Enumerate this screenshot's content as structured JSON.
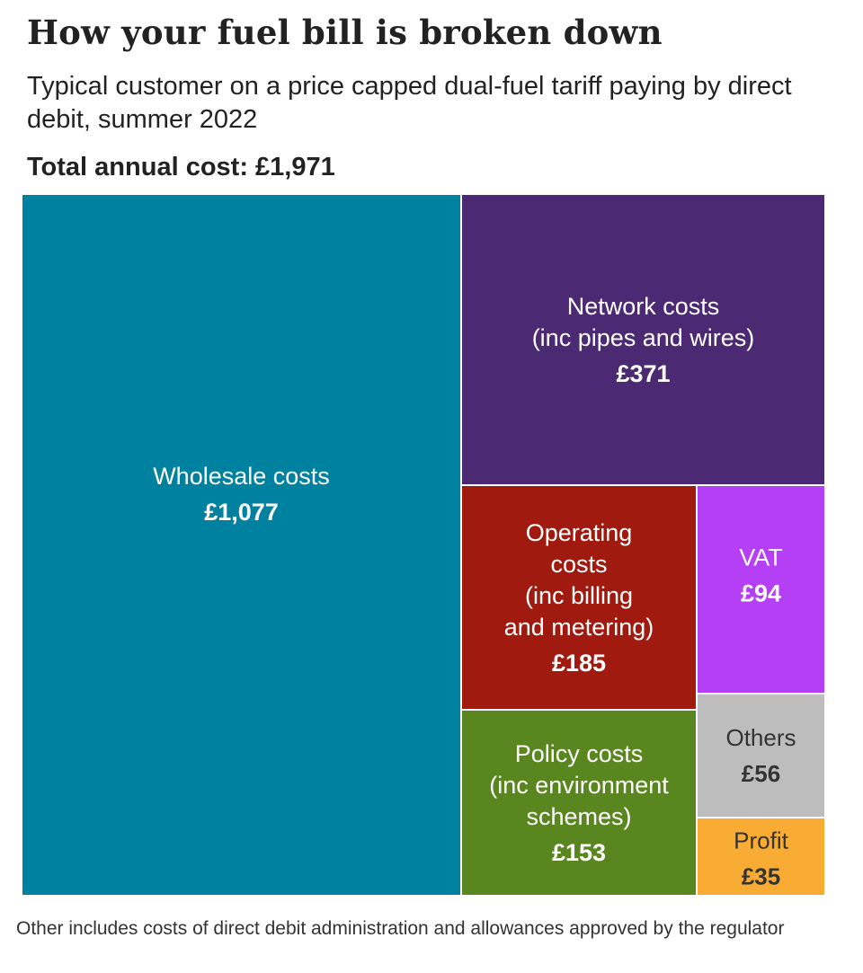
{
  "title": "How your fuel bill is broken down",
  "subtitle": "Typical customer on a price capped dual-fuel tariff paying by direct debit, summer 2022",
  "total_label": "Total annual cost: £1,971",
  "footnote": "Other includes costs of direct debit administration and allowances approved by the regulator",
  "chart_data": {
    "type": "treemap",
    "total": 1971,
    "currency": "£",
    "items": [
      {
        "id": "wholesale",
        "label_lines": [
          "Wholesale costs"
        ],
        "value_label": "£1,077",
        "value": 1077,
        "color": "#00819f",
        "text_color": "#ffffff"
      },
      {
        "id": "network",
        "label_lines": [
          "Network costs",
          "(inc pipes and wires)"
        ],
        "value_label": "£371",
        "value": 371,
        "color": "#4b2a73",
        "text_color": "#ffffff"
      },
      {
        "id": "operating",
        "label_lines": [
          "Operating",
          "costs",
          "(inc billing",
          "and metering)"
        ],
        "value_label": "£185",
        "value": 185,
        "color": "#a01a0f",
        "text_color": "#ffffff"
      },
      {
        "id": "vat",
        "label_lines": [
          "VAT"
        ],
        "value_label": "£94",
        "value": 94,
        "color": "#b43ff5",
        "text_color": "#ffffff"
      },
      {
        "id": "policy",
        "label_lines": [
          "Policy costs",
          "(inc environment",
          "schemes)"
        ],
        "value_label": "£153",
        "value": 153,
        "color": "#59861e",
        "text_color": "#ffffff"
      },
      {
        "id": "others",
        "label_lines": [
          "Others"
        ],
        "value_label": "£56",
        "value": 56,
        "color": "#bdbdbd",
        "text_color": "#333333"
      },
      {
        "id": "profit",
        "label_lines": [
          "Profit"
        ],
        "value_label": "£35",
        "value": 35,
        "color": "#f8ac33",
        "text_color": "#333333"
      }
    ]
  }
}
